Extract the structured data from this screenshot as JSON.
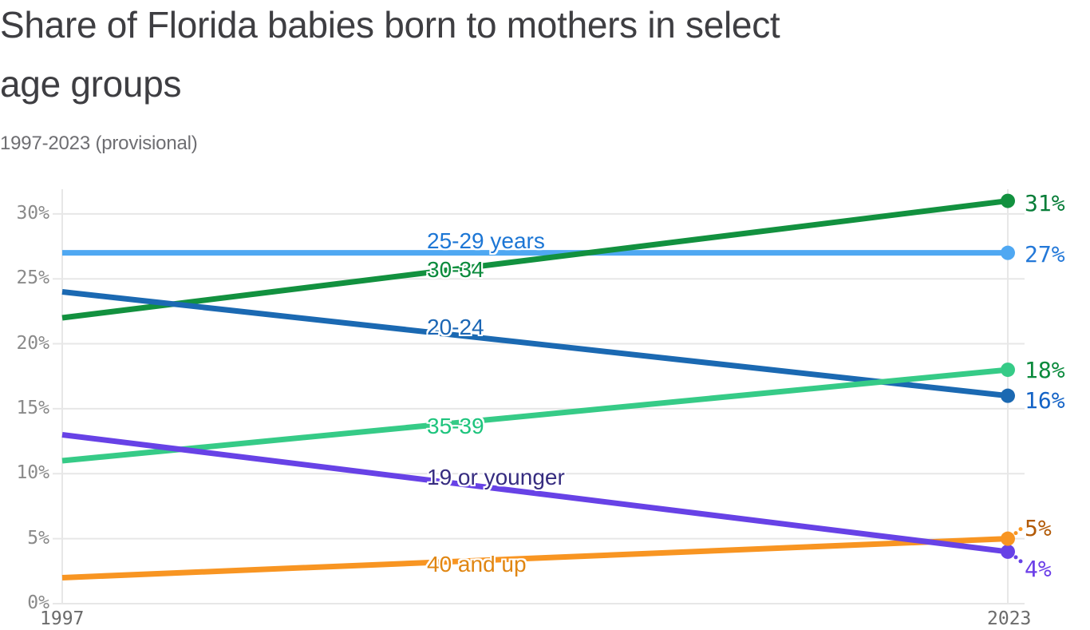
{
  "header": {
    "title_line1": "Share of Florida babies born to mothers in select",
    "title_line2": "age groups",
    "subtitle": "1997-2023 (provisional)"
  },
  "chart_data": {
    "type": "line",
    "title": "Share of Florida babies born to mothers in select age groups",
    "subtitle": "1997-2023 (provisional)",
    "x": [
      1997,
      2023
    ],
    "x_tick_labels": [
      "1997",
      "2023"
    ],
    "y_axis": {
      "min": 0,
      "max": 30,
      "tick_step": 5,
      "tick_labels": [
        "0%",
        "5%",
        "10%",
        "15%",
        "20%",
        "25%",
        "30%"
      ]
    },
    "grid": {
      "horizontal": true,
      "vertical_edges_only": true,
      "color": "#e7e7e7"
    },
    "legend_position": "inline-labels-on-lines",
    "series": [
      {
        "name": "25-29 years",
        "values": [
          27,
          27
        ],
        "end_label": "27%",
        "line_color": "#4fa8f2",
        "label_color": "#1c76d5",
        "end_label_color": "#2378d8"
      },
      {
        "name": "30-34",
        "values": [
          22,
          31
        ],
        "end_label": "31%",
        "line_color": "#12913f",
        "label_color": "#0a8a3c",
        "end_label_color": "#077d38"
      },
      {
        "name": "20-24",
        "values": [
          24,
          16
        ],
        "end_label": "16%",
        "line_color": "#1b69b2",
        "label_color": "#1b66b4",
        "end_label_color": "#1463c6"
      },
      {
        "name": "35-39",
        "values": [
          11,
          18
        ],
        "end_label": "18%",
        "line_color": "#36cb87",
        "label_color": "#1ec47d",
        "end_label_color": "#0a8a3c"
      },
      {
        "name": "19 or younger",
        "values": [
          13,
          4
        ],
        "end_label": "4%",
        "line_color": "#6742e6",
        "label_color": "#362c80",
        "end_label_color": "#6b3ee8",
        "leader": "down"
      },
      {
        "name": "40 and up",
        "values": [
          2,
          5
        ],
        "end_label": "5%",
        "line_color": "#f89522",
        "label_color": "#e08612",
        "end_label_color": "#b25a07",
        "leader": "up"
      }
    ]
  }
}
